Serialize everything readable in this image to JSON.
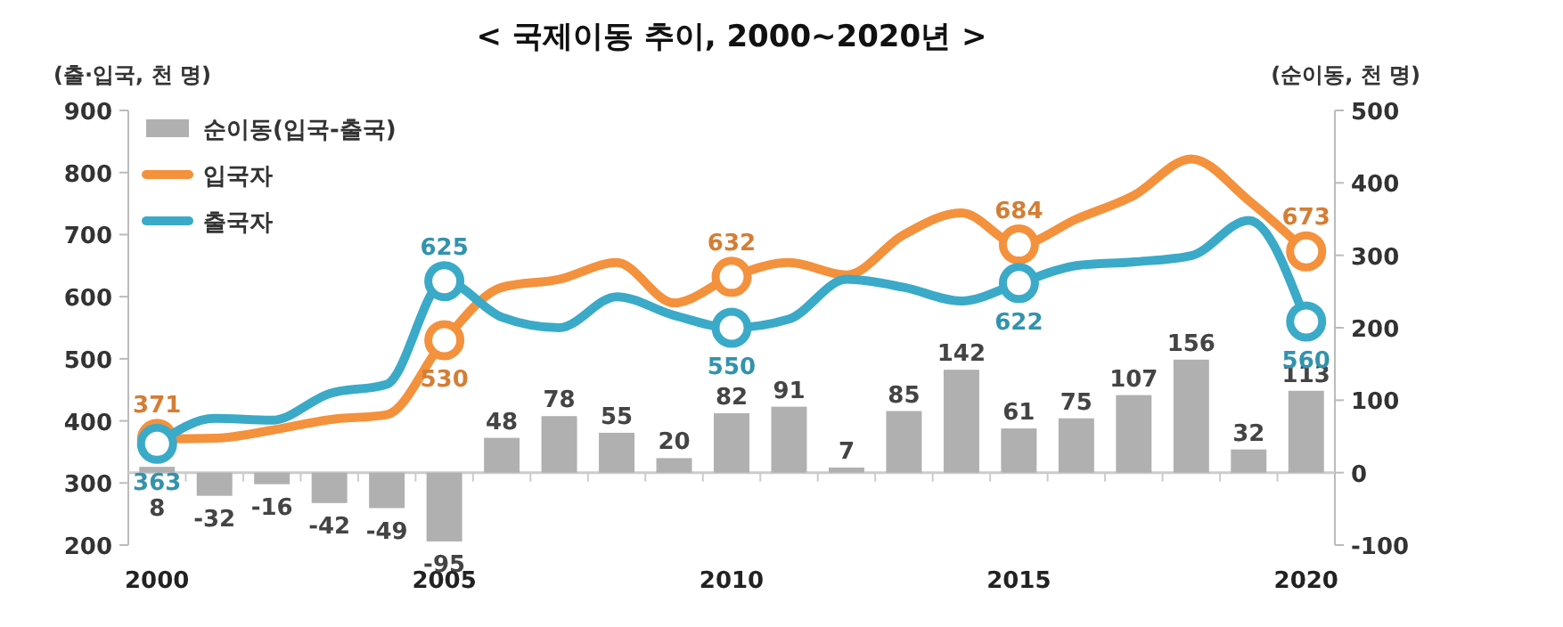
{
  "chart_data": {
    "type": "line",
    "title": "< 국제이동 추이, 2000~2020년 >",
    "ylabel": "(출·입국, 천 명)",
    "y2label": "(순이동, 천 명)",
    "x": [
      2000,
      2001,
      2002,
      2003,
      2004,
      2005,
      2006,
      2007,
      2008,
      2009,
      2010,
      2011,
      2012,
      2013,
      2014,
      2015,
      2016,
      2017,
      2018,
      2019,
      2020
    ],
    "xlim": [
      1999.5,
      2020.5
    ],
    "xticks": [
      2000,
      2005,
      2010,
      2015,
      2020
    ],
    "ylim": [
      200,
      900
    ],
    "yticks": [
      200,
      300,
      400,
      500,
      600,
      700,
      800,
      900
    ],
    "y2lim": [
      -100,
      500
    ],
    "y2ticks": [
      -100,
      0,
      100,
      200,
      300,
      400,
      500
    ],
    "legend": "top left",
    "series": [
      {
        "name": "순이동(입국-출국)",
        "type": "bar",
        "axis": "y2",
        "color": "#b0b0b0",
        "values": [
          8,
          -32,
          -16,
          -42,
          -49,
          -95,
          48,
          78,
          55,
          20,
          82,
          91,
          7,
          85,
          142,
          61,
          75,
          107,
          156,
          32,
          113
        ],
        "value_labels": [
          "8",
          "-32",
          "-16",
          "-42",
          "-49",
          "-95",
          "48",
          "78",
          "55",
          "20",
          "82",
          "91",
          "7",
          "85",
          "142",
          "61",
          "75",
          "107",
          "156",
          "32",
          "113"
        ]
      },
      {
        "name": "입국자",
        "color": "#f4913c",
        "values": [
          371,
          372,
          385,
          402,
          410,
          530,
          615,
          628,
          655,
          590,
          632,
          655,
          635,
          700,
          735,
          684,
          725,
          763,
          822,
          755,
          673
        ],
        "value_labels": [
          "371",
          null,
          null,
          null,
          null,
          "530",
          null,
          null,
          null,
          null,
          "632",
          null,
          null,
          null,
          null,
          "684",
          null,
          null,
          null,
          null,
          "673"
        ]
      },
      {
        "name": "출국자",
        "color": "#3aaac8",
        "values": [
          363,
          404,
          401,
          444,
          459,
          625,
          567,
          550,
          600,
          570,
          550,
          564,
          628,
          615,
          593,
          622,
          650,
          656,
          666,
          723,
          560
        ],
        "value_labels": [
          "363",
          null,
          null,
          null,
          null,
          "625",
          null,
          null,
          null,
          null,
          "550",
          null,
          null,
          null,
          null,
          "622",
          null,
          null,
          null,
          null,
          "560"
        ]
      }
    ]
  }
}
